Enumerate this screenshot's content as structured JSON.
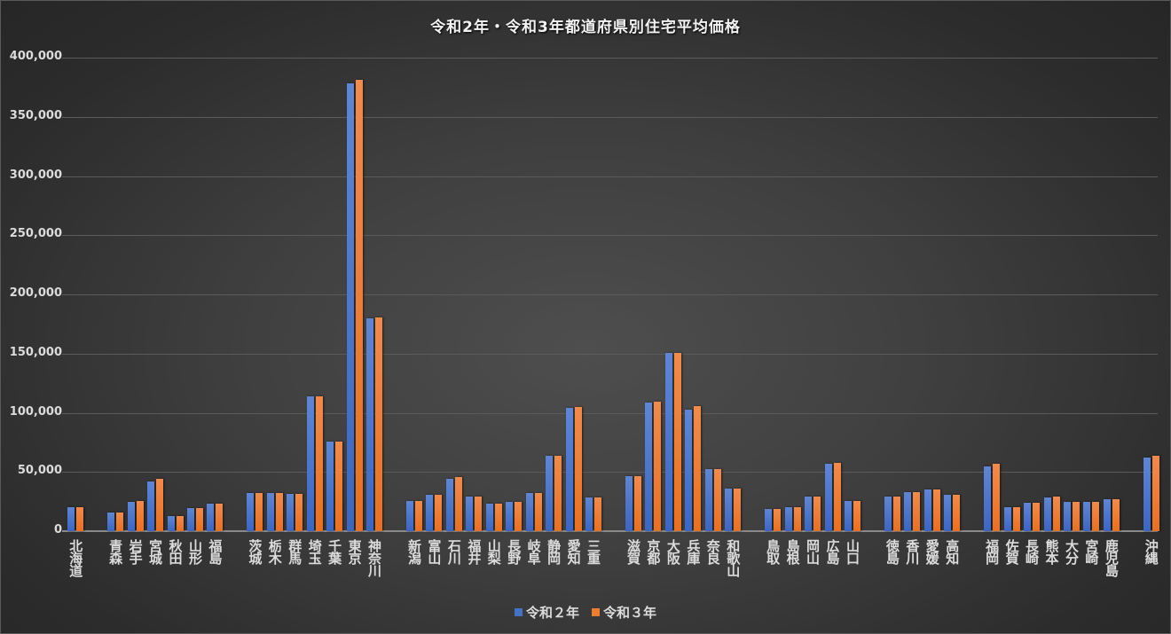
{
  "chart_data": {
    "type": "bar",
    "title": "令和2年・令和3年都道府県別住宅平均価格",
    "xlabel": "",
    "ylabel": "",
    "ylim": [
      0,
      400000
    ],
    "yticks": [
      "0",
      "50,000",
      "100,000",
      "150,000",
      "200,000",
      "250,000",
      "300,000",
      "350,000",
      "400,000"
    ],
    "grid": true,
    "legend_position": "bottom",
    "categories": [
      "北海道",
      "",
      "青森",
      "岩手",
      "宮城",
      "秋田",
      "山形",
      "福島",
      "",
      "茨城",
      "栃木",
      "群馬",
      "埼玉",
      "千葉",
      "東京",
      "神奈川",
      "",
      "新潟",
      "富山",
      "石川",
      "福井",
      "山梨",
      "長野",
      "岐阜",
      "静岡",
      "愛知",
      "三重",
      "",
      "滋賀",
      "京都",
      "大阪",
      "兵庫",
      "奈良",
      "和歌山",
      "",
      "鳥取",
      "島根",
      "岡山",
      "広島",
      "山口",
      "",
      "徳島",
      "香川",
      "愛媛",
      "高知",
      "",
      "福岡",
      "佐賀",
      "長崎",
      "熊本",
      "大分",
      "宮崎",
      "鹿児島",
      "",
      "沖縄"
    ],
    "series": [
      {
        "name": "令和２年",
        "color": "#4472C4",
        "values": [
          20000,
          null,
          16000,
          25000,
          42000,
          13000,
          19500,
          23000,
          null,
          32000,
          32000,
          31500,
          113500,
          75500,
          378000,
          179500,
          null,
          25500,
          30500,
          44000,
          29500,
          23500,
          24500,
          32000,
          64000,
          104000,
          28500,
          null,
          46500,
          109000,
          150500,
          103000,
          52500,
          36000,
          null,
          19000,
          20500,
          29000,
          57000,
          25500,
          null,
          29500,
          33000,
          35000,
          30500,
          null,
          54500,
          20000,
          24000,
          28500,
          25000,
          24500,
          27000,
          null,
          62000
        ]
      },
      {
        "name": "令和３年",
        "color": "#ED7D31",
        "values": [
          20500,
          null,
          16000,
          25500,
          44000,
          13000,
          19500,
          23000,
          null,
          32000,
          32000,
          31500,
          114000,
          76000,
          381000,
          180500,
          null,
          25500,
          30500,
          45500,
          29500,
          23500,
          24500,
          32000,
          64000,
          105000,
          28500,
          null,
          46500,
          109500,
          150500,
          106000,
          52500,
          36000,
          null,
          19000,
          20500,
          29000,
          57500,
          25500,
          null,
          29500,
          33000,
          35000,
          30500,
          null,
          57000,
          20500,
          24000,
          29000,
          25000,
          24500,
          27000,
          null,
          63500
        ]
      }
    ]
  },
  "legend": {
    "items": [
      {
        "label": "令和２年",
        "color": "#4472C4"
      },
      {
        "label": "令和３年",
        "color": "#ED7D31"
      }
    ]
  }
}
